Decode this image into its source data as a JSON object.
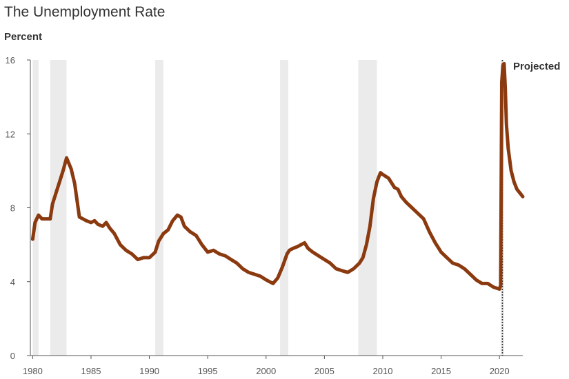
{
  "chart_data": {
    "type": "line",
    "title": "The Unemployment Rate",
    "ylabel": "Percent",
    "xlabel": "",
    "ylim": [
      0,
      16
    ],
    "xlim": [
      1979.8,
      2022
    ],
    "yticks": [
      "0",
      "4",
      "8",
      "12",
      "16"
    ],
    "ytick_values": [
      0,
      4,
      8,
      12,
      16
    ],
    "xticks": [
      "1980",
      "1985",
      "1990",
      "1995",
      "2000",
      "2005",
      "2010",
      "2015",
      "2020"
    ],
    "xtick_values": [
      1980,
      1985,
      1990,
      1995,
      2000,
      2005,
      2010,
      2015,
      2020
    ],
    "grid": "off",
    "line_color": "#8b3a10",
    "shade_color": "#ebebeb",
    "recessions": [
      [
        1980.0,
        1980.5
      ],
      [
        1981.5,
        1982.9
      ],
      [
        1990.5,
        1991.2
      ],
      [
        2001.2,
        2001.9
      ],
      [
        2007.9,
        2009.5
      ],
      [
        2020.1,
        2020.4
      ]
    ],
    "annotation": {
      "text": "Projected",
      "x": 2020.25
    },
    "series": [
      {
        "x": [
          1980.0,
          1980.2,
          1980.5,
          1980.8,
          1981.0,
          1981.3,
          1981.5,
          1981.7,
          1982.0,
          1982.3,
          1982.6,
          1982.9,
          1983.3,
          1983.6,
          1984.0,
          1984.3,
          1984.6,
          1985.0,
          1985.3,
          1985.6,
          1986.0,
          1986.3,
          1986.6,
          1987.0,
          1987.5,
          1988.0,
          1988.5,
          1989.0,
          1989.5,
          1990.0,
          1990.5,
          1990.8,
          1991.2,
          1991.6,
          1992.0,
          1992.4,
          1992.7,
          1993.0,
          1993.5,
          1994.0,
          1994.5,
          1995.0,
          1995.5,
          1996.0,
          1996.5,
          1997.0,
          1997.5,
          1998.0,
          1998.5,
          1999.0,
          1999.5,
          2000.0,
          2000.3,
          2000.6,
          2001.0,
          2001.4,
          2001.8,
          2002.0,
          2002.3,
          2002.7,
          2003.0,
          2003.3,
          2003.6,
          2004.0,
          2004.5,
          2005.0,
          2005.5,
          2006.0,
          2006.5,
          2007.0,
          2007.5,
          2008.0,
          2008.3,
          2008.6,
          2008.9,
          2009.2,
          2009.5,
          2009.8,
          2010.0,
          2010.5,
          2011.0,
          2011.3,
          2011.6,
          2012.0,
          2012.5,
          2013.0,
          2013.5,
          2014.0,
          2014.5,
          2015.0,
          2015.5,
          2016.0,
          2016.5,
          2017.0,
          2017.5,
          2018.0,
          2018.5,
          2019.0,
          2019.5,
          2020.0,
          2020.1,
          2020.2,
          2020.3,
          2020.4,
          2020.5,
          2020.6,
          2020.75,
          2021.0,
          2021.25,
          2021.5,
          2021.75,
          2022.0
        ],
        "values": [
          6.3,
          7.2,
          7.6,
          7.4,
          7.4,
          7.4,
          7.4,
          8.2,
          8.8,
          9.4,
          10.0,
          10.7,
          10.1,
          9.3,
          7.5,
          7.4,
          7.3,
          7.2,
          7.3,
          7.1,
          7.0,
          7.2,
          6.9,
          6.6,
          6.0,
          5.7,
          5.5,
          5.2,
          5.3,
          5.3,
          5.6,
          6.2,
          6.6,
          6.8,
          7.3,
          7.6,
          7.5,
          7.0,
          6.7,
          6.5,
          6.0,
          5.6,
          5.7,
          5.5,
          5.4,
          5.2,
          5.0,
          4.7,
          4.5,
          4.4,
          4.3,
          4.1,
          4.0,
          3.9,
          4.2,
          4.8,
          5.5,
          5.7,
          5.8,
          5.9,
          6.0,
          6.1,
          5.8,
          5.6,
          5.4,
          5.2,
          5.0,
          4.7,
          4.6,
          4.5,
          4.7,
          5.0,
          5.3,
          6.0,
          7.0,
          8.5,
          9.4,
          9.9,
          9.8,
          9.6,
          9.1,
          9.0,
          8.6,
          8.3,
          8.0,
          7.7,
          7.4,
          6.7,
          6.1,
          5.6,
          5.3,
          5.0,
          4.9,
          4.7,
          4.4,
          4.1,
          3.9,
          3.9,
          3.7,
          3.6,
          3.8,
          14.8,
          15.7,
          15.8,
          14.5,
          12.5,
          11.2,
          10.0,
          9.4,
          9.0,
          8.8,
          8.6
        ]
      }
    ]
  }
}
